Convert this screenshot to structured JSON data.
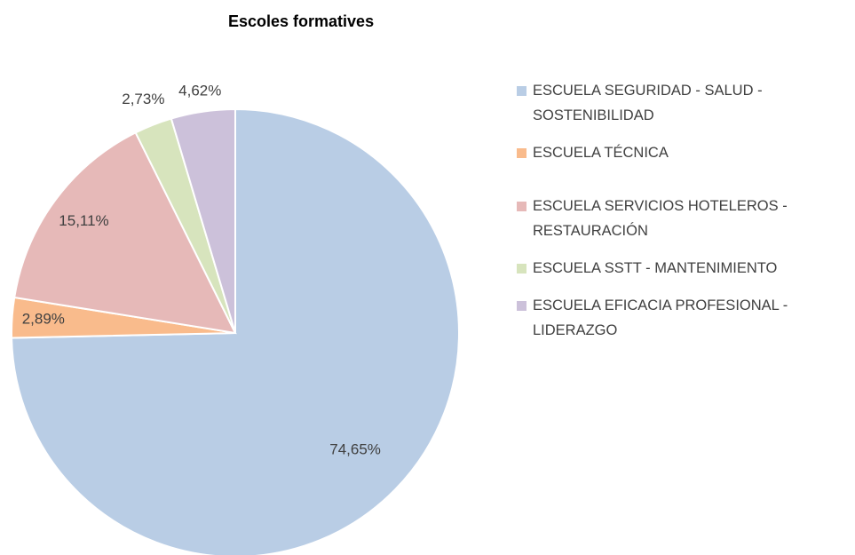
{
  "chart_data": {
    "type": "pie",
    "title": "Escoles formatives",
    "categories": [
      "ESCUELA SEGURIDAD - SALUD - SOSTENIBILIDAD",
      "ESCUELA TÉCNICA",
      "ESCUELA SERVICIOS HOTELEROS - RESTAURACIÓN",
      "ESCUELA SSTT - MANTENIMIENTO",
      "ESCUELA EFICACIA PROFESIONAL - LIDERAZGO"
    ],
    "values": [
      74.65,
      2.89,
      15.11,
      2.73,
      4.62
    ],
    "value_labels": [
      "74,65%",
      "2,89%",
      "15,11%",
      "2,73%",
      "4,62%"
    ],
    "colors": [
      "#b9cde5",
      "#f9bb8c",
      "#e6b9b8",
      "#d7e4bd",
      "#ccc1da"
    ],
    "legend": "right"
  }
}
